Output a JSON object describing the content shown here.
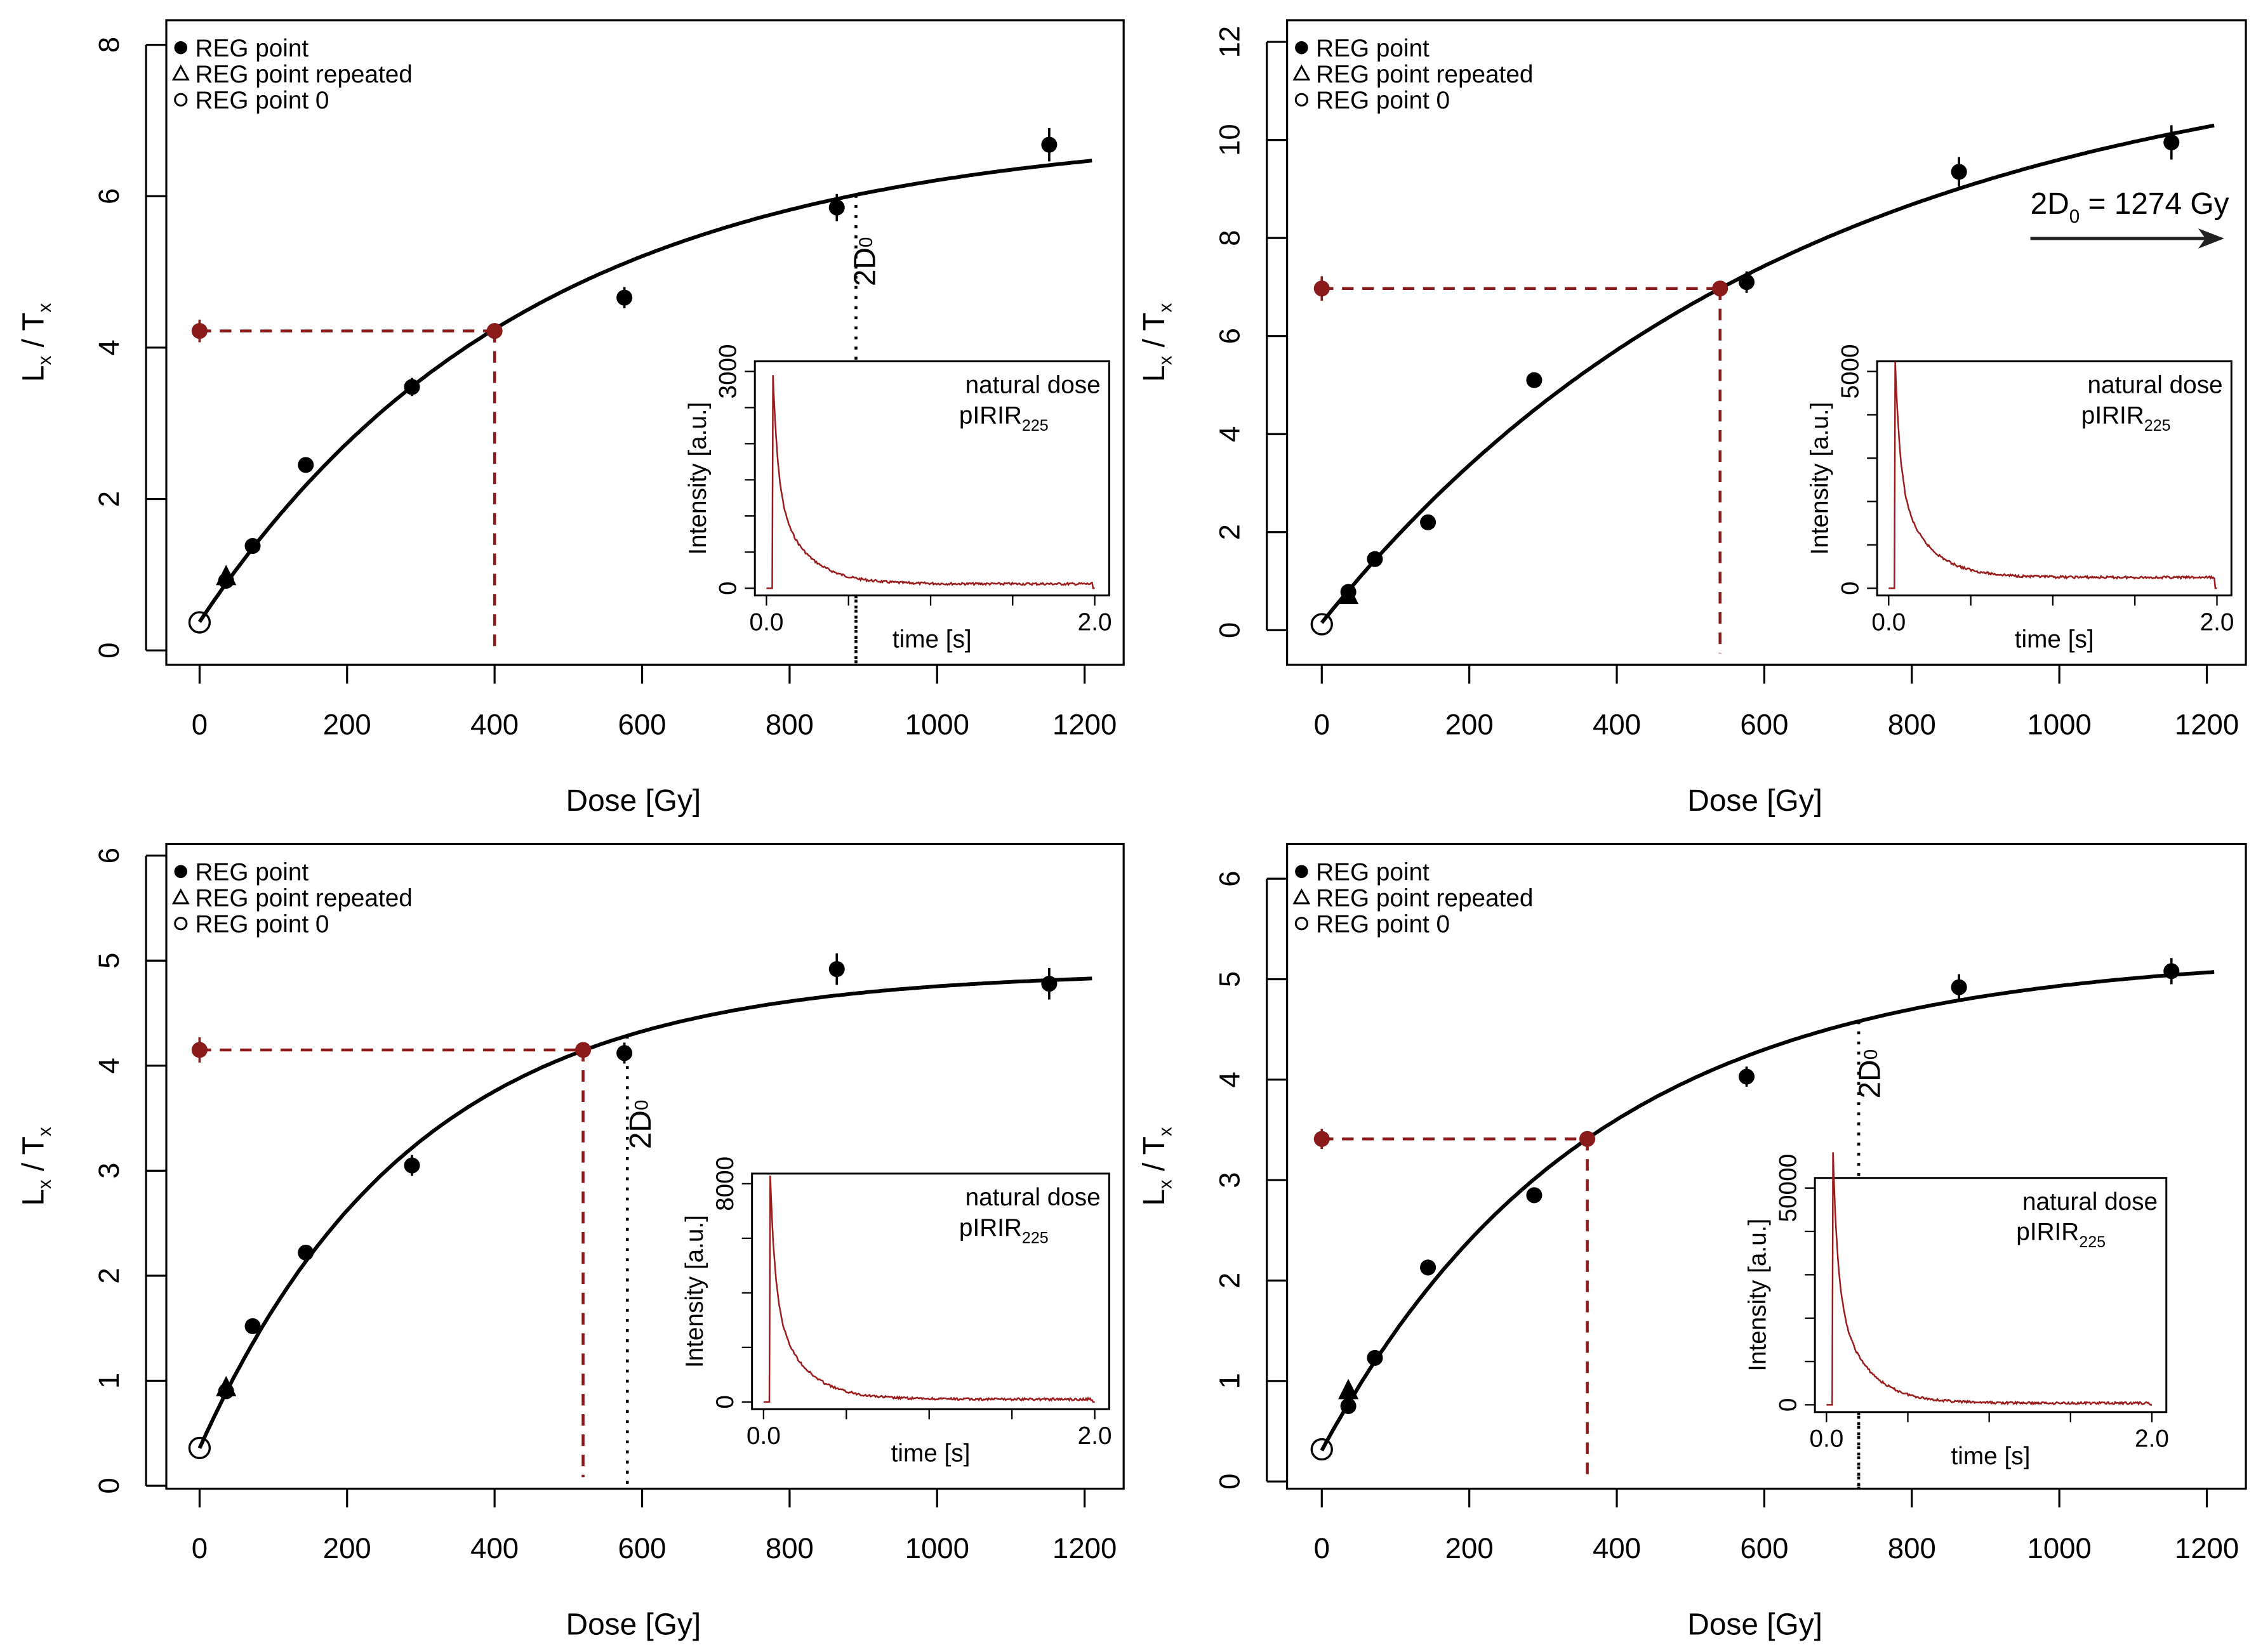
{
  "colors": {
    "points": "#000000",
    "natural": "#8b1a1a",
    "decay": "#9b1c1c",
    "fit": "#000000"
  },
  "legend": {
    "items": [
      {
        "label": "REG point",
        "symbol": "filled-circle"
      },
      {
        "label": "REG point repeated",
        "symbol": "open-triangle"
      },
      {
        "label": "REG point 0",
        "symbol": "open-circle"
      }
    ],
    "placement": "top-left"
  },
  "chart_data": [
    {
      "type": "scatter",
      "xlabel": "Dose [Gy]",
      "ylabel_main": "L",
      "ylabel_sub1": "x",
      "ylabel_mid": " / T",
      "ylabel_sub2": "x",
      "xlim": [
        0,
        1200
      ],
      "ylim": [
        0,
        8
      ],
      "xticks": [
        0,
        200,
        400,
        600,
        800,
        1000,
        1200
      ],
      "yticks": [
        0,
        2,
        4,
        6,
        8
      ],
      "reg_points": {
        "x": [
          36,
          72,
          144,
          288,
          576,
          864,
          1152
        ],
        "y": [
          0.92,
          1.38,
          2.45,
          3.48,
          4.66,
          5.85,
          6.68
        ],
        "err": [
          0.08,
          0.08,
          0.08,
          0.12,
          0.14,
          0.18,
          0.22
        ]
      },
      "repeated_point": {
        "x": 36,
        "y": 0.97
      },
      "zero_point": {
        "x": 0,
        "y": 0.37
      },
      "natural": {
        "y": 4.22,
        "err": 0.15,
        "de": 400
      },
      "fit": {
        "model": "exponential",
        "a": 6.9,
        "d0": 445,
        "c": 25,
        "xmax": 1210
      },
      "two_d0": {
        "value": 890,
        "label_main": "2D",
        "label_sub": "0",
        "mode": "line"
      },
      "inset": {
        "label1": "natural dose",
        "label2_main": "pIRIR",
        "label2_sub": "225",
        "xlabel": "time [s]",
        "ylabel": "Intensity [a.u.]",
        "xlim": [
          0,
          2
        ],
        "xtick_labels": [
          "0.0",
          "2.0"
        ],
        "ymax_label": "3000",
        "ymin_label": "0",
        "ymax": 3000,
        "ystep": 500,
        "peak": 2950,
        "background": 60
      }
    },
    {
      "type": "scatter",
      "xlabel": "Dose [Gy]",
      "ylabel_main": "L",
      "ylabel_sub1": "x",
      "ylabel_mid": " / T",
      "ylabel_sub2": "x",
      "xlim": [
        0,
        1200
      ],
      "ylim": [
        0,
        12
      ],
      "xticks": [
        0,
        200,
        400,
        600,
        800,
        1000,
        1200
      ],
      "yticks": [
        0,
        2,
        4,
        6,
        8,
        10,
        12
      ],
      "reg_points": {
        "x": [
          36,
          72,
          144,
          288,
          576,
          864,
          1152
        ],
        "y": [
          0.78,
          1.45,
          2.2,
          5.1,
          7.1,
          9.35,
          9.95
        ],
        "err": [
          0.1,
          0.1,
          0.1,
          0.15,
          0.22,
          0.3,
          0.35
        ]
      },
      "repeated_point": {
        "x": 36,
        "y": 0.7
      },
      "zero_point": {
        "x": 0,
        "y": 0.12
      },
      "natural": {
        "y": 6.97,
        "err": 0.25,
        "de": 540
      },
      "fit": {
        "model": "exponential",
        "a": 12.08,
        "d0": 637,
        "c": 8,
        "xmax": 1210
      },
      "two_d0": {
        "value": 1274,
        "label_main": "2D",
        "label_sub": "0",
        "label_rest": " = 1274 Gy",
        "mode": "arrow"
      },
      "inset": {
        "label1": "natural dose",
        "label2_main": "pIRIR",
        "label2_sub": "225",
        "xlabel": "time [s]",
        "ylabel": "Intensity [a.u.]",
        "xlim": [
          0,
          2
        ],
        "xtick_labels": [
          "0.0",
          "2.0"
        ],
        "ymax_label": "5000",
        "ymin_label": "0",
        "ymax": 5000,
        "ystep": 1000,
        "peak": 5200,
        "background": 250
      }
    },
    {
      "type": "scatter",
      "xlabel": "Dose [Gy]",
      "ylabel_main": "L",
      "ylabel_sub1": "x",
      "ylabel_mid": " / T",
      "ylabel_sub2": "x",
      "xlim": [
        0,
        1200
      ],
      "ylim": [
        0,
        6
      ],
      "xticks": [
        0,
        200,
        400,
        600,
        800,
        1000,
        1200
      ],
      "yticks": [
        0,
        1,
        2,
        3,
        4,
        5,
        6
      ],
      "reg_points": {
        "x": [
          36,
          72,
          144,
          288,
          576,
          864,
          1152
        ],
        "y": [
          0.9,
          1.52,
          2.22,
          3.05,
          4.12,
          4.92,
          4.78
        ],
        "err": [
          0.06,
          0.06,
          0.06,
          0.1,
          0.1,
          0.15,
          0.15
        ]
      },
      "repeated_point": {
        "x": 36,
        "y": 0.93
      },
      "zero_point": {
        "x": 0,
        "y": 0.36
      },
      "natural": {
        "y": 4.15,
        "err": 0.12,
        "de": 520
      },
      "fit": {
        "model": "exponential",
        "a": 4.9,
        "d0": 290,
        "c": 22,
        "xmax": 1210
      },
      "two_d0": {
        "value": 580,
        "label_main": "2D",
        "label_sub": "0",
        "mode": "line"
      },
      "inset": {
        "label1": "natural dose",
        "label2_main": "pIRIR",
        "label2_sub": "225",
        "xlabel": "time [s]",
        "ylabel": "Intensity [a.u.]",
        "xlim": [
          0,
          2
        ],
        "xtick_labels": [
          "0.0",
          "2.0"
        ],
        "ymax_label": "8000",
        "ymin_label": "0",
        "ymax": 8000,
        "ystep": 2000,
        "peak": 8300,
        "background": 100
      }
    },
    {
      "type": "scatter",
      "xlabel": "Dose [Gy]",
      "ylabel_main": "L",
      "ylabel_sub1": "x",
      "ylabel_mid": " / T",
      "ylabel_sub2": "x",
      "xlim": [
        0,
        1200
      ],
      "ylim": [
        0,
        6
      ],
      "xticks": [
        0,
        200,
        400,
        600,
        800,
        1000,
        1200
      ],
      "yticks": [
        0,
        1,
        2,
        3,
        4,
        5,
        6
      ],
      "reg_points": {
        "x": [
          36,
          72,
          144,
          288,
          576,
          864,
          1152
        ],
        "y": [
          0.75,
          1.23,
          2.13,
          2.85,
          4.03,
          4.92,
          5.08
        ],
        "err": [
          0.05,
          0.05,
          0.05,
          0.07,
          0.1,
          0.13,
          0.13
        ]
      },
      "repeated_point": {
        "x": 36,
        "y": 0.9
      },
      "zero_point": {
        "x": 0,
        "y": 0.32
      },
      "natural": {
        "y": 3.41,
        "err": 0.1,
        "de": 360
      },
      "fit": {
        "model": "exponential",
        "a": 5.25,
        "d0": 364,
        "c": 22,
        "xmax": 1210
      },
      "two_d0": {
        "value": 728,
        "label_main": "2D",
        "label_sub": "0",
        "mode": "line"
      },
      "inset": {
        "label1": "natural dose",
        "label2_main": "pIRIR",
        "label2_sub": "225",
        "xlabel": "time [s]",
        "ylabel": "Intensity [a.u.]",
        "xlim": [
          0,
          2
        ],
        "xtick_labels": [
          "0.0",
          "2.0"
        ],
        "ymax_label": "50000",
        "ymin_label": "0",
        "ymax": 50000,
        "ystep": 10000,
        "peak": 58000,
        "background": 400
      }
    }
  ]
}
